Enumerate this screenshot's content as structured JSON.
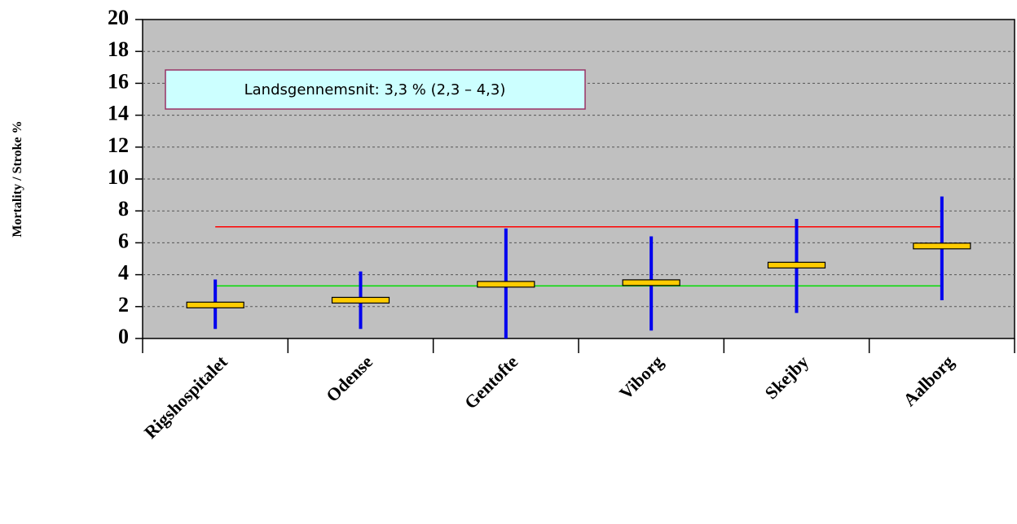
{
  "chart_data": {
    "type": "range",
    "y_label": "Mortality / Stroke %",
    "annotation": "Landsgennemsnit: 3,3 % (2,3 – 4,3)",
    "categories": [
      "Rigshospitalet",
      "Odense",
      "Gentofte",
      "Viborg",
      "Skejby",
      "Aalborg"
    ],
    "values": [
      2.1,
      2.4,
      3.4,
      3.5,
      4.6,
      5.8
    ],
    "lower": [
      0.6,
      0.6,
      0,
      0.5,
      1.6,
      2.4
    ],
    "upper": [
      3.7,
      4.2,
      6.9,
      6.4,
      7.5,
      8.9
    ],
    "color": "#ffcc00",
    "range_color": "#0000ee",
    "reference_lines": [
      {
        "value": 7,
        "color": "#ff0000"
      },
      {
        "value": 3.3,
        "color": "#00dd00"
      }
    ],
    "ylim": [
      0,
      20
    ],
    "yticks": [
      0,
      2,
      4,
      6,
      8,
      10,
      12,
      14,
      16,
      18,
      20
    ],
    "grid": true
  }
}
